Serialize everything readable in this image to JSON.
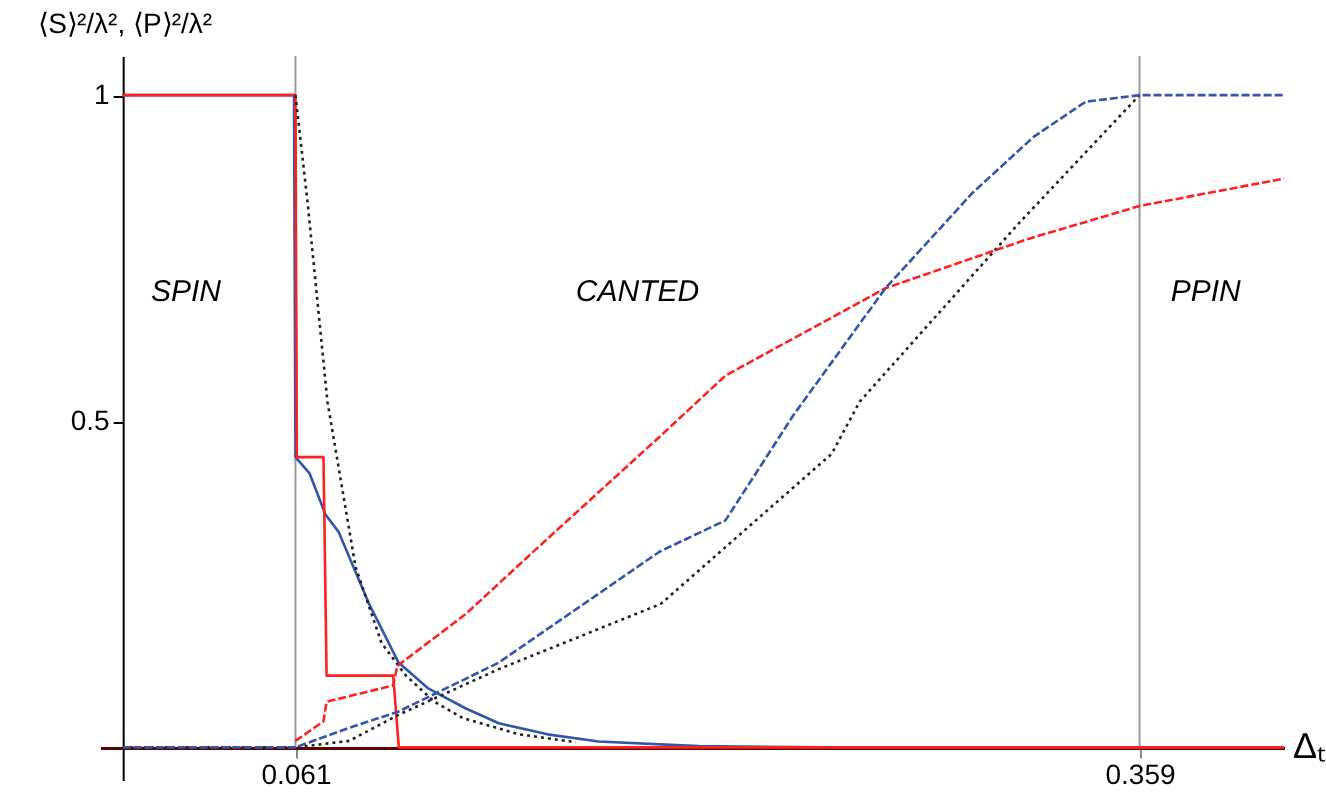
{
  "chart_data": {
    "type": "line",
    "xlabel": "Δₜ",
    "ylabel": "⟨S⟩²/λ², ⟨P⟩²/λ²",
    "xlim": [
      -0.008,
      0.41
    ],
    "ylim": [
      -0.05,
      1.06
    ],
    "xticks": [
      0.061,
      0.359
    ],
    "yticks": [
      0.5,
      1
    ],
    "grid": false,
    "marker": "none",
    "ref_lines": [
      {
        "axis": "x",
        "value": 0.061,
        "color": "#999999"
      },
      {
        "axis": "x",
        "value": 0.359,
        "color": "#999999"
      }
    ],
    "annotations": [
      "SPIN",
      "CANTED",
      "PPIN"
    ],
    "series": [
      {
        "color": "#3355aa",
        "line_style": "solid",
        "x": [
          0,
          0.0605,
          0.061,
          0.066,
          0.0716,
          0.0763,
          0.087,
          0.0974,
          0.108,
          0.121,
          0.1328,
          0.15,
          0.168,
          0.2034,
          0.25,
          0.41
        ],
        "values": [
          1,
          1,
          0.445,
          0.42,
          0.357,
          0.33,
          0.22,
          0.13,
          0.09,
          0.06,
          0.037,
          0.02,
          0.009,
          0.002,
          0,
          0
        ]
      },
      {
        "color": "#ff2020",
        "line_style": "solid",
        "x": [
          0,
          0.061,
          0.0615,
          0.0709,
          0.072,
          0.0955,
          0.0975,
          0.41
        ],
        "values": [
          1,
          1,
          0.445,
          0.445,
          0.11,
          0.11,
          0,
          0
        ]
      },
      {
        "color": "#222222",
        "line_style": "dotted",
        "x": [
          0.061,
          0.0653,
          0.0723,
          0.0822,
          0.0914,
          0.1,
          0.11,
          0.12,
          0.14,
          0.16
        ],
        "values": [
          1,
          0.835,
          0.53,
          0.277,
          0.16,
          0.11,
          0.07,
          0.045,
          0.02,
          0.008
        ]
      },
      {
        "color": "#222222",
        "line_style": "dotted",
        "x": [
          0,
          0.061,
          0.08,
          0.0974,
          0.1328,
          0.19,
          0.2503,
          0.2602,
          0.3167,
          0.359
        ],
        "values": [
          0,
          0,
          0.01,
          0.05,
          0.12,
          0.22,
          0.45,
          0.53,
          0.805,
          1
        ]
      },
      {
        "color": "#ff2020",
        "line_style": "dashed",
        "x": [
          0.061,
          0.0709,
          0.072,
          0.0955,
          0.097,
          0.121,
          0.15,
          0.1895,
          0.2128,
          0.2693,
          0.32,
          0.359,
          0.41
        ],
        "values": [
          0.01,
          0.04,
          0.07,
          0.095,
          0.125,
          0.204,
          0.32,
          0.476,
          0.57,
          0.704,
          0.78,
          0.83,
          0.872
        ]
      },
      {
        "color": "#3355aa",
        "line_style": "dashed",
        "x": [
          0,
          0.061,
          0.08,
          0.0974,
          0.1328,
          0.1895,
          0.2128,
          0.2369,
          0.2693,
          0.3,
          0.3216,
          0.34,
          0.359,
          0.41
        ],
        "values": [
          0,
          0,
          0.03,
          0.055,
          0.13,
          0.3,
          0.348,
          0.51,
          0.704,
          0.85,
          0.936,
          0.99,
          1,
          1
        ]
      }
    ]
  }
}
